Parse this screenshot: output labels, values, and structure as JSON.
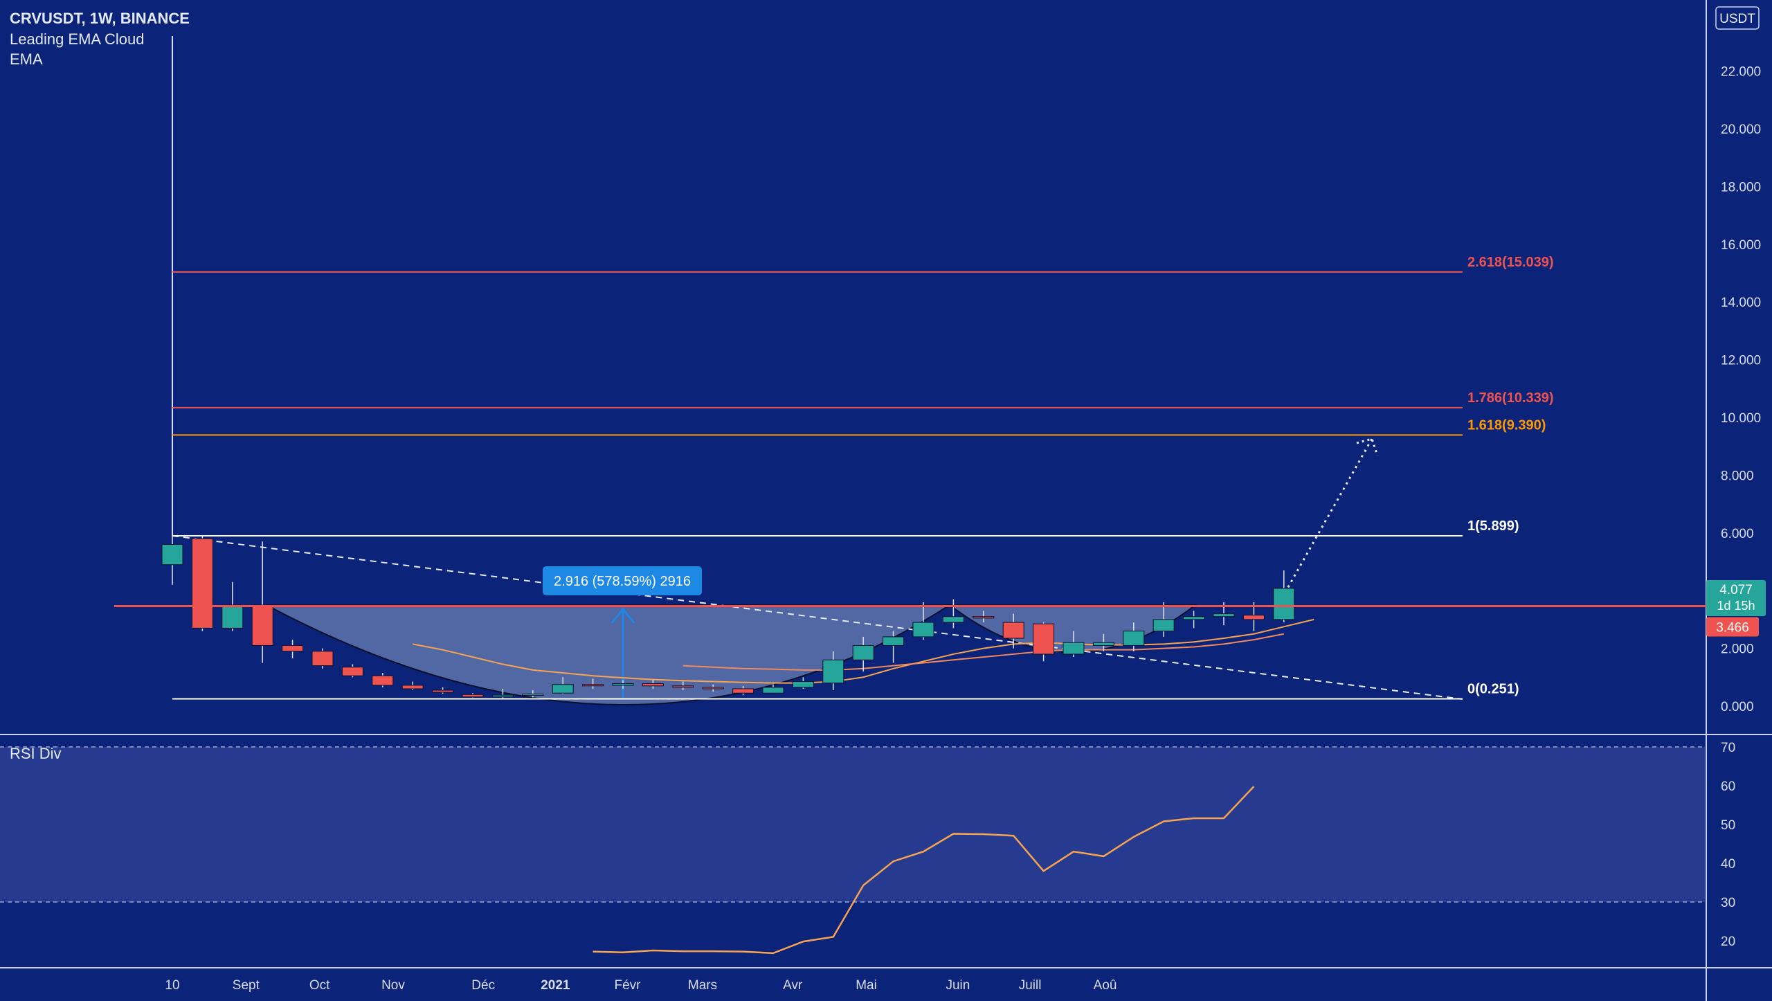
{
  "header": {
    "title": "CRVUSDT, 1W, BINANCE",
    "indicator_1": "Leading EMA Cloud",
    "indicator_2": "EMA"
  },
  "price_axis": {
    "currency": "USDT",
    "ticks": [
      "22.000",
      "20.000",
      "18.000",
      "16.000",
      "14.000",
      "12.000",
      "10.000",
      "8.000",
      "6.000",
      "4.000",
      "2.000",
      "0.000"
    ],
    "tick_values": [
      22,
      20,
      18,
      16,
      14,
      12,
      10,
      8,
      6,
      4,
      2,
      0
    ]
  },
  "badges": {
    "last_price": "4.077",
    "countdown": "1d 15h",
    "resistance_price": "3.466"
  },
  "measure_label": "2.916 (578.59%) 2916",
  "rsi": {
    "title": "RSI Div",
    "ticks": [
      "70",
      "60",
      "50",
      "40",
      "30",
      "20"
    ],
    "tick_values": [
      70,
      60,
      50,
      40,
      30,
      20
    ]
  },
  "time_axis": {
    "labels": [
      "10",
      "Sept",
      "Oct",
      "Nov",
      "Déc",
      "2021",
      "Févr",
      "Mars",
      "Avr",
      "Mai",
      "Juin",
      "Juill",
      "Aoû"
    ],
    "bold": [
      false,
      false,
      false,
      false,
      false,
      true,
      false,
      false,
      false,
      false,
      false,
      false,
      false
    ]
  },
  "colors": {
    "background": "#0b2479",
    "up": "#26a69a",
    "down": "#ef5350",
    "fib_red": "#ef5350",
    "fib_orange": "#ff9800",
    "fib_white": "#ffffff",
    "ema": "#f7a350",
    "badge_blue": "#1e88e5"
  },
  "chart_data": {
    "type": "candlestick",
    "title": "CRVUSDT, 1W, BINANCE",
    "timeframe": "1W",
    "ylim": [
      0,
      23
    ],
    "x_labels": [
      "10",
      "Sept",
      "Oct",
      "Nov",
      "Déc",
      "2021",
      "Févr",
      "Mars",
      "Avr",
      "Mai",
      "Juin",
      "Juill",
      "Aoû"
    ],
    "candles": [
      {
        "o": 4.9,
        "h": 5.9,
        "l": 4.2,
        "c": 5.6
      },
      {
        "o": 5.8,
        "h": 5.9,
        "l": 2.6,
        "c": 2.7
      },
      {
        "o": 2.7,
        "h": 4.3,
        "l": 2.6,
        "c": 3.5
      },
      {
        "o": 3.5,
        "h": 5.7,
        "l": 1.5,
        "c": 2.1
      },
      {
        "o": 2.1,
        "h": 2.3,
        "l": 1.65,
        "c": 1.9
      },
      {
        "o": 1.9,
        "h": 2.0,
        "l": 1.3,
        "c": 1.4
      },
      {
        "o": 1.35,
        "h": 1.45,
        "l": 1.0,
        "c": 1.05
      },
      {
        "o": 1.05,
        "h": 1.15,
        "l": 0.65,
        "c": 0.72
      },
      {
        "o": 0.72,
        "h": 0.85,
        "l": 0.55,
        "c": 0.6
      },
      {
        "o": 0.55,
        "h": 0.65,
        "l": 0.43,
        "c": 0.48
      },
      {
        "o": 0.4,
        "h": 0.45,
        "l": 0.3,
        "c": 0.32
      },
      {
        "o": 0.32,
        "h": 0.6,
        "l": 0.28,
        "c": 0.38
      },
      {
        "o": 0.37,
        "h": 0.55,
        "l": 0.3,
        "c": 0.42
      },
      {
        "o": 0.45,
        "h": 1.0,
        "l": 0.42,
        "c": 0.75
      },
      {
        "o": 0.75,
        "h": 0.95,
        "l": 0.6,
        "c": 0.72
      },
      {
        "o": 0.72,
        "h": 0.9,
        "l": 0.6,
        "c": 0.78
      },
      {
        "o": 0.78,
        "h": 0.9,
        "l": 0.6,
        "c": 0.7
      },
      {
        "o": 0.7,
        "h": 0.85,
        "l": 0.55,
        "c": 0.65
      },
      {
        "o": 0.65,
        "h": 0.75,
        "l": 0.5,
        "c": 0.6
      },
      {
        "o": 0.6,
        "h": 0.7,
        "l": 0.38,
        "c": 0.45
      },
      {
        "o": 0.45,
        "h": 0.75,
        "l": 0.45,
        "c": 0.65
      },
      {
        "o": 0.65,
        "h": 1.0,
        "l": 0.6,
        "c": 0.85
      },
      {
        "o": 0.8,
        "h": 1.9,
        "l": 0.55,
        "c": 1.6
      },
      {
        "o": 1.6,
        "h": 2.4,
        "l": 1.2,
        "c": 2.1
      },
      {
        "o": 2.1,
        "h": 2.6,
        "l": 1.5,
        "c": 2.4
      },
      {
        "o": 2.4,
        "h": 3.6,
        "l": 2.3,
        "c": 2.9
      },
      {
        "o": 2.9,
        "h": 3.7,
        "l": 2.7,
        "c": 3.1
      },
      {
        "o": 3.1,
        "h": 3.3,
        "l": 2.9,
        "c": 3.05
      },
      {
        "o": 2.9,
        "h": 3.2,
        "l": 2.0,
        "c": 2.35
      },
      {
        "o": 2.85,
        "h": 2.9,
        "l": 1.55,
        "c": 1.8
      },
      {
        "o": 1.8,
        "h": 2.6,
        "l": 1.7,
        "c": 2.2
      },
      {
        "o": 2.1,
        "h": 2.5,
        "l": 1.9,
        "c": 2.2
      },
      {
        "o": 2.1,
        "h": 2.9,
        "l": 1.9,
        "c": 2.6
      },
      {
        "o": 2.6,
        "h": 3.6,
        "l": 2.4,
        "c": 3.0
      },
      {
        "o": 3.0,
        "h": 3.3,
        "l": 2.7,
        "c": 3.1
      },
      {
        "o": 3.1,
        "h": 3.6,
        "l": 2.8,
        "c": 3.2
      },
      {
        "o": 3.15,
        "h": 3.6,
        "l": 2.6,
        "c": 3.0
      },
      {
        "o": 3.0,
        "h": 4.7,
        "l": 2.9,
        "c": 4.08
      }
    ],
    "fib_levels": [
      {
        "label": "2.618(15.039)",
        "value": 15.039,
        "color": "#ef5350"
      },
      {
        "label": "1.786(10.339)",
        "value": 10.339,
        "color": "#ef5350"
      },
      {
        "label": "1.618(9.390)",
        "value": 9.39,
        "color": "#ff9800"
      },
      {
        "label": "1(5.899)",
        "value": 5.899,
        "color": "#ffffff"
      },
      {
        "label": "0(0.251)",
        "value": 0.251,
        "color": "#ffffff"
      }
    ],
    "resistance": 3.466,
    "last_price": 4.077,
    "ema_series": [
      {
        "start": 8,
        "values": [
          2.15,
          1.95,
          1.7,
          1.45,
          1.25,
          1.15,
          1.05,
          0.98,
          0.92,
          0.88,
          0.85,
          0.82,
          0.8,
          0.8,
          0.85,
          1.0,
          1.3,
          1.55,
          1.8,
          2.0,
          2.15,
          2.2,
          2.15,
          2.12,
          2.12,
          2.15,
          2.22,
          2.35,
          2.5,
          2.75,
          3.0
        ]
      },
      {
        "start": 17,
        "values": [
          1.4,
          1.35,
          1.3,
          1.28,
          1.25,
          1.25,
          1.3,
          1.4,
          1.5,
          1.6,
          1.7,
          1.8,
          1.9,
          1.95,
          1.95,
          1.95,
          2.0,
          2.05,
          2.15,
          2.3,
          2.5
        ]
      }
    ],
    "rsi": {
      "start": 14,
      "values": [
        17.2,
        17.0,
        17.5,
        17.3,
        17.3,
        17.2,
        16.8,
        19.8,
        21.0,
        34.3,
        40.5,
        43.0,
        47.6,
        47.5,
        47.1,
        38.0,
        43.0,
        41.8,
        46.8,
        50.8,
        51.6,
        51.6,
        59.8
      ],
      "upper_band": 70,
      "lower_band": 30
    }
  }
}
